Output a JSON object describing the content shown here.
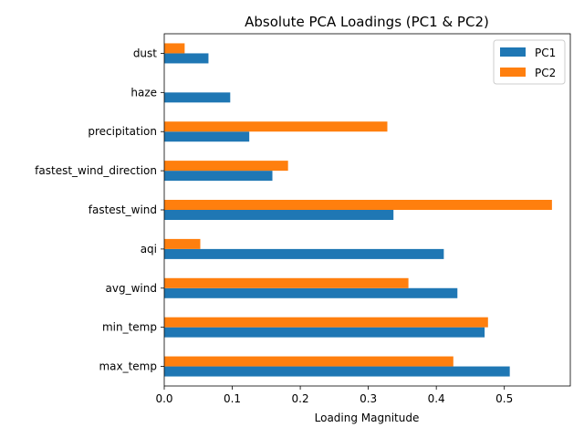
{
  "chart_data": {
    "type": "bar",
    "orientation": "horizontal",
    "title": "Absolute PCA Loadings (PC1 & PC2)",
    "xlabel": "Loading Magnitude",
    "ylabel": "",
    "xlim": [
      0,
      0.597
    ],
    "xticks": [
      "0.0",
      "0.1",
      "0.2",
      "0.3",
      "0.4",
      "0.5"
    ],
    "categories": [
      "max_temp",
      "min_temp",
      "avg_wind",
      "aqi",
      "fastest_wind",
      "fastest_wind_direction",
      "precipitation",
      "haze",
      "dust"
    ],
    "series": [
      {
        "name": "PC1",
        "color": "#1f77b4",
        "values": [
          0.508,
          0.471,
          0.431,
          0.411,
          0.337,
          0.159,
          0.125,
          0.097,
          0.065
        ]
      },
      {
        "name": "PC2",
        "color": "#ff7f0e",
        "values": [
          0.425,
          0.476,
          0.359,
          0.053,
          0.57,
          0.182,
          0.328,
          0.0,
          0.03
        ]
      }
    ],
    "grid": false,
    "legend_position": "upper right"
  }
}
